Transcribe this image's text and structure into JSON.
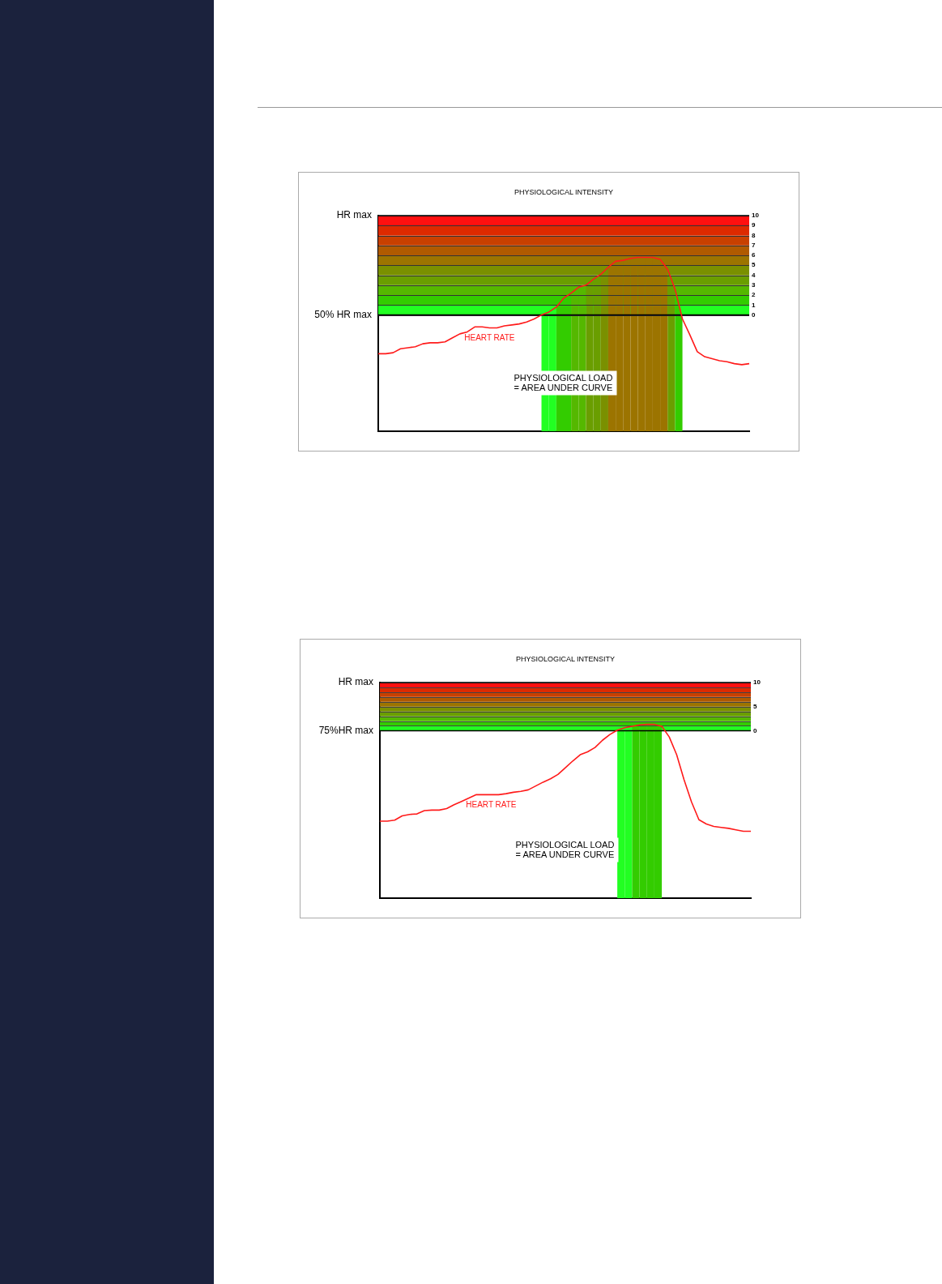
{
  "chart_data": [
    {
      "type": "line",
      "title": "PHYSIOLOGICAL INTENSITY",
      "categories": [
        null,
        null,
        null,
        null,
        null,
        null,
        null,
        null,
        null,
        null,
        null,
        null,
        null,
        null,
        null,
        null,
        null,
        null,
        null,
        null,
        null,
        null,
        null,
        null,
        null,
        null,
        null,
        null,
        null,
        null,
        null,
        null,
        null,
        null,
        null,
        null,
        null,
        null,
        null,
        null,
        null,
        null,
        null,
        null,
        null,
        null,
        null,
        null,
        null,
        null,
        null
      ],
      "ylim": [
        -11.7,
        10
      ],
      "yticks": [
        0,
        1,
        2,
        3,
        4,
        5,
        6,
        7,
        8,
        9,
        10
      ],
      "tick_labels": "y",
      "series": [
        {
          "name": "HEART RATE",
          "color": "#ff1a1a",
          "values": [
            -3.9,
            -3.9,
            -3.8,
            -3.4,
            -3.3,
            -3.2,
            -2.9,
            -2.8,
            -2.8,
            -2.7,
            -2.3,
            -1.9,
            -1.7,
            -1.2,
            -1.2,
            -1.3,
            -1.3,
            -1.1,
            -1.0,
            -0.9,
            -0.7,
            -0.4,
            0,
            0.3,
            0.8,
            1.7,
            2.2,
            2.8,
            3.0,
            3.6,
            4.1,
            4.8,
            5.4,
            5.5,
            5.7,
            5.8,
            5.8,
            5.8,
            5.6,
            4.6,
            2.6,
            -0.4,
            -2.0,
            -3.7,
            -4.2,
            -4.4,
            -4.6,
            -4.7,
            -4.9,
            -5.0,
            -4.9
          ]
        }
      ],
      "ref_lines": [
        {
          "axis": "y",
          "value": 10,
          "label": "HR max",
          "color": "#000000"
        },
        {
          "axis": "y",
          "value": 0,
          "label": "50% HR max",
          "color": "#000000"
        }
      ],
      "bands": [
        {
          "axis": "y",
          "from": 0,
          "to": 1,
          "color": "#22ff22"
        },
        {
          "axis": "y",
          "from": 1,
          "to": 2,
          "color": "#33cc00"
        },
        {
          "axis": "y",
          "from": 2,
          "to": 3,
          "color": "#55b800"
        },
        {
          "axis": "y",
          "from": 3,
          "to": 4,
          "color": "#6a9e00"
        },
        {
          "axis": "y",
          "from": 4,
          "to": 5,
          "color": "#7a9000"
        },
        {
          "axis": "y",
          "from": 5,
          "to": 6,
          "color": "#9c7400"
        },
        {
          "axis": "y",
          "from": 6,
          "to": 7,
          "color": "#b05a00"
        },
        {
          "axis": "y",
          "from": 7,
          "to": 8,
          "color": "#c84000"
        },
        {
          "axis": "y",
          "from": 8,
          "to": 9,
          "color": "#dd2a00"
        },
        {
          "axis": "y",
          "from": 9,
          "to": 10,
          "color": "#ff1010"
        }
      ],
      "grid": "y",
      "annotations": [
        "PHYSIOLOGICAL LOAD\n= AREA UNDER CURVE"
      ]
    },
    {
      "type": "line",
      "title": "PHYSIOLOGICAL INTENSITY",
      "categories": [
        null,
        null,
        null,
        null,
        null,
        null,
        null,
        null,
        null,
        null,
        null,
        null,
        null,
        null,
        null,
        null,
        null,
        null,
        null,
        null,
        null,
        null,
        null,
        null,
        null,
        null,
        null,
        null,
        null,
        null,
        null,
        null,
        null,
        null,
        null,
        null,
        null,
        null,
        null,
        null,
        null,
        null,
        null,
        null,
        null,
        null,
        null,
        null,
        null,
        null,
        null
      ],
      "ylim": [
        -34.8,
        10
      ],
      "yticks": [
        0,
        5,
        10
      ],
      "tick_labels": "y",
      "series": [
        {
          "name": "HEART RATE",
          "color": "#ff1a1a",
          "values": [
            -18.8,
            -18.8,
            -18.6,
            -17.7,
            -17.4,
            -17.3,
            -16.6,
            -16.5,
            -16.5,
            -16.2,
            -15.4,
            -14.7,
            -14.0,
            -13.3,
            -13.3,
            -13.3,
            -13.3,
            -13.1,
            -12.8,
            -12.6,
            -12.3,
            -11.5,
            -10.7,
            -10.0,
            -9.1,
            -7.7,
            -6.3,
            -5.0,
            -4.4,
            -3.5,
            -2.0,
            -0.8,
            0.1,
            0.6,
            0.9,
            1.2,
            1.3,
            1.3,
            0.9,
            -1.3,
            -5.0,
            -10.2,
            -14.8,
            -18.5,
            -19.4,
            -19.9,
            -20.1,
            -20.3,
            -20.6,
            -20.9,
            -20.9
          ]
        }
      ],
      "ref_lines": [
        {
          "axis": "y",
          "value": 10,
          "label": "HR max",
          "color": "#000000"
        },
        {
          "axis": "y",
          "value": 0,
          "label": "75%HR max",
          "color": "#000000"
        }
      ],
      "bands": [
        {
          "axis": "y",
          "from": 0,
          "to": 1,
          "color": "#22ff22"
        },
        {
          "axis": "y",
          "from": 1,
          "to": 2,
          "color": "#33cc00"
        },
        {
          "axis": "y",
          "from": 2,
          "to": 3,
          "color": "#55b800"
        },
        {
          "axis": "y",
          "from": 3,
          "to": 4,
          "color": "#6a9e00"
        },
        {
          "axis": "y",
          "from": 4,
          "to": 5,
          "color": "#7a9000"
        },
        {
          "axis": "y",
          "from": 5,
          "to": 6,
          "color": "#9c7400"
        },
        {
          "axis": "y",
          "from": 6,
          "to": 7,
          "color": "#b05a00"
        },
        {
          "axis": "y",
          "from": 7,
          "to": 8,
          "color": "#c84000"
        },
        {
          "axis": "y",
          "from": 8,
          "to": 9,
          "color": "#dd2a00"
        },
        {
          "axis": "y",
          "from": 9,
          "to": 10,
          "color": "#ff1010"
        }
      ],
      "annotations": [
        "PHYSIOLOGICAL LOAD\n= AREA UNDER CURVE"
      ]
    }
  ]
}
